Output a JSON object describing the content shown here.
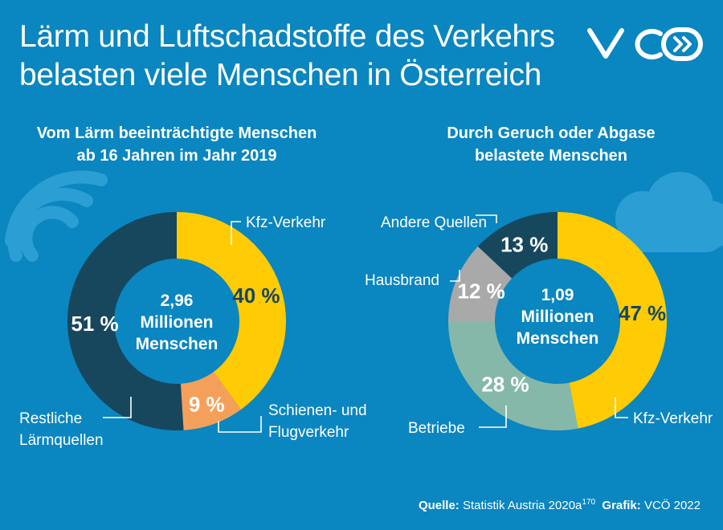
{
  "header": {
    "title_line1": "Lärm und Luftschadstoffe des Verkehrs",
    "title_line2": "belasten viele Menschen in Österreich",
    "logo_text": "VCÖ"
  },
  "colors": {
    "background": "#0a86c0",
    "center": "#0a86c0",
    "yellow": "#ffcb05",
    "orange": "#f5a05a",
    "dark": "#17475d",
    "grey": "#a9a9a9",
    "green": "#86b8aa"
  },
  "chart_data": [
    {
      "type": "pie",
      "title_line1": "Vom Lärm beeinträchtigte Menschen",
      "title_line2": "ab 16 Jahren im Jahr 2019",
      "center_line1": "2,96",
      "center_line2": "Millionen",
      "center_line3": "Menschen",
      "slices": [
        {
          "label": "Kfz-Verkehr",
          "value": 40,
          "display": "40 %",
          "color": "#ffcb05",
          "text_color": "#17475d"
        },
        {
          "label_line1": "Schienen- und",
          "label_line2": "Flugverkehr",
          "value": 9,
          "display": "9 %",
          "color": "#f5a05a",
          "text_color": "#ffffff"
        },
        {
          "label_line1": "Restliche",
          "label_line2": "Lärmquellen",
          "value": 51,
          "display": "51 %",
          "color": "#17475d",
          "text_color": "#ffffff"
        }
      ]
    },
    {
      "type": "pie",
      "title_line1": "Durch Geruch oder Abgase",
      "title_line2": "belastete Menschen",
      "center_line1": "1,09",
      "center_line2": "Millionen",
      "center_line3": "Menschen",
      "slices": [
        {
          "label": "Kfz-Verkehr",
          "value": 47,
          "display": "47 %",
          "color": "#ffcb05",
          "text_color": "#17475d"
        },
        {
          "label": "Betriebe",
          "value": 28,
          "display": "28 %",
          "color": "#86b8aa",
          "text_color": "#ffffff"
        },
        {
          "label": "Hausbrand",
          "value": 12,
          "display": "12 %",
          "color": "#a9a9a9",
          "text_color": "#ffffff"
        },
        {
          "label": "Andere Quellen",
          "value": 13,
          "display": "13 %",
          "color": "#17475d",
          "text_color": "#ffffff"
        }
      ]
    }
  ],
  "footer": {
    "source_label": "Quelle:",
    "source_text": "Statistik Austria 2020a",
    "source_sup": "170",
    "graphic_label": "Grafik:",
    "graphic_text": "VCÖ 2022"
  }
}
